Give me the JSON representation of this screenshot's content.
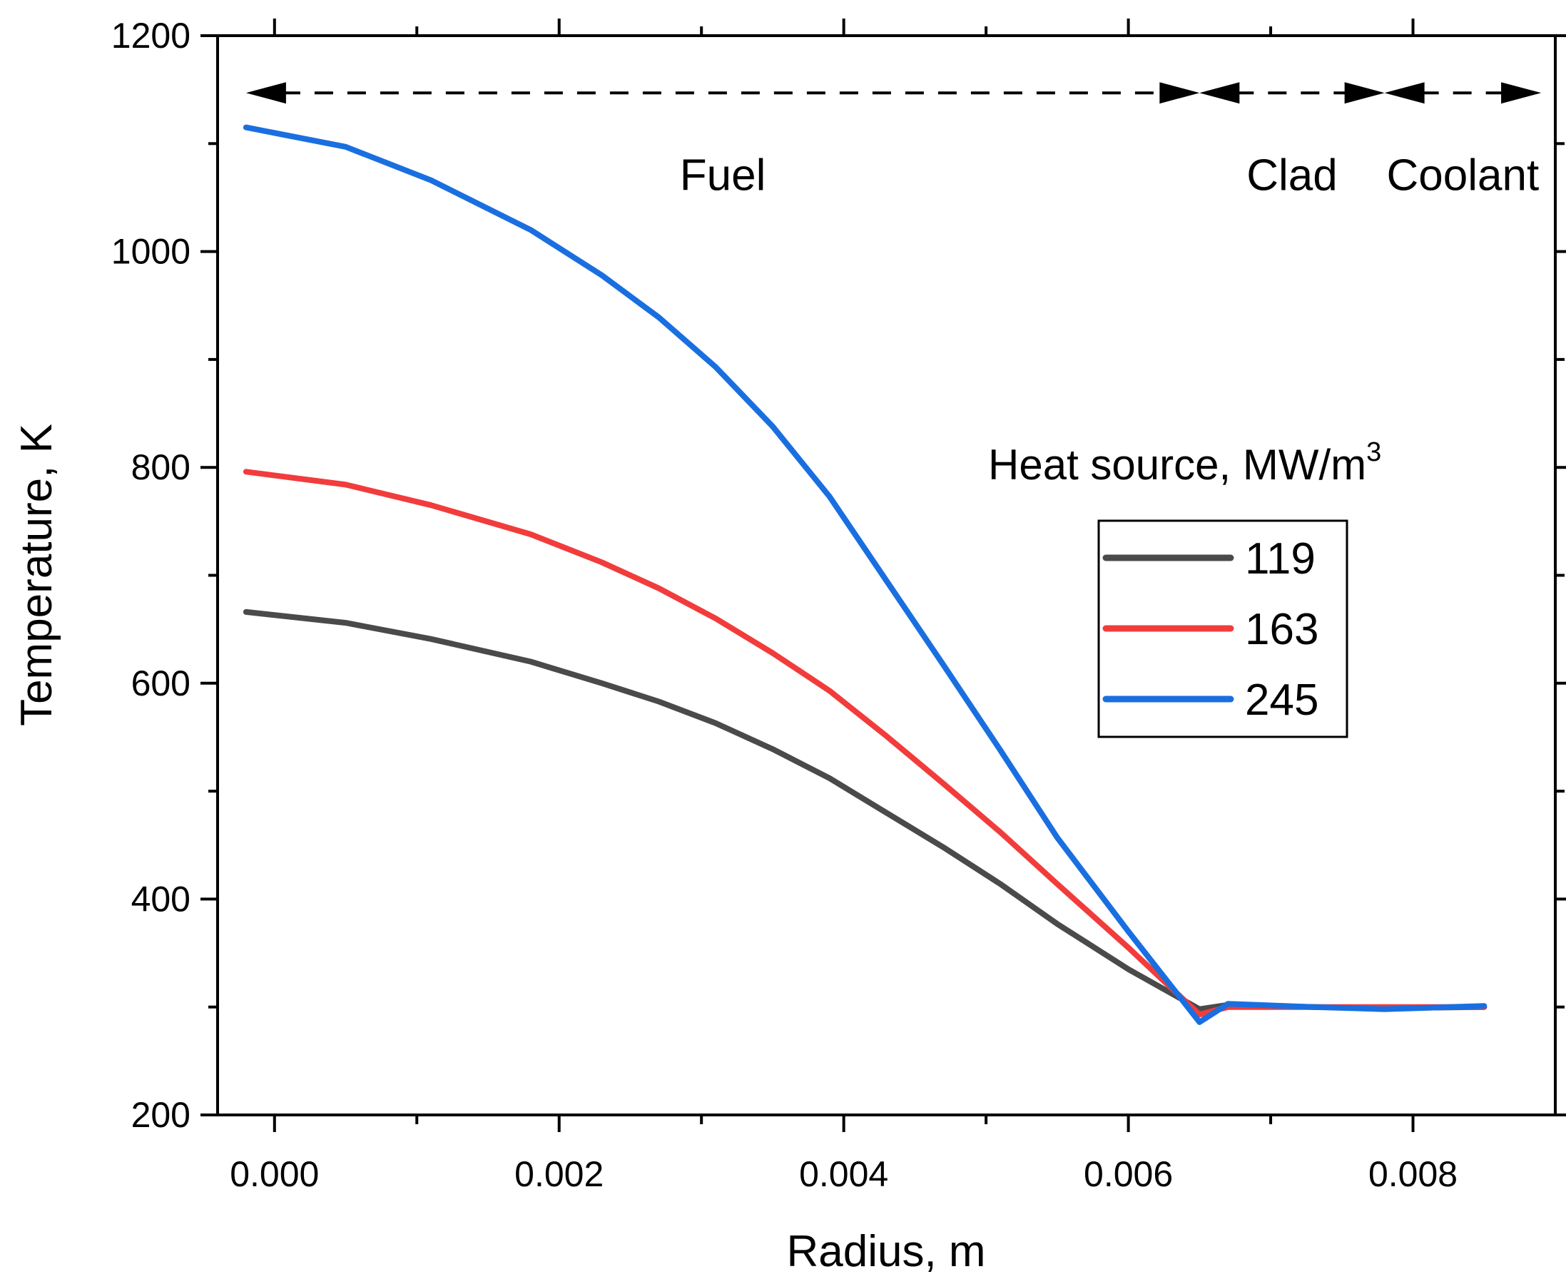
{
  "chart_data": {
    "type": "line",
    "xlabel": "Radius, m",
    "ylabel": "Temperature, K",
    "xlim": [
      -0.0004,
      0.009
    ],
    "ylim": [
      200,
      1200
    ],
    "xticks": [
      "0.000",
      "0.002",
      "0.004",
      "0.006",
      "0.008"
    ],
    "yticks": [
      "200",
      "400",
      "600",
      "800",
      "1000",
      "1200"
    ],
    "grid": false,
    "legend": {
      "title": "Heat source, MW/m",
      "title_superscript": "3",
      "placement": "right-middle"
    },
    "regions": [
      {
        "label": "Fuel",
        "from": -0.0002,
        "to": 0.0065
      },
      {
        "label": "Clad",
        "from": 0.0065,
        "to": 0.0078
      },
      {
        "label": "Coolant",
        "from": 0.0078,
        "to": 0.0089
      }
    ],
    "series": [
      {
        "name": "119",
        "color": "#4a4a4a",
        "x": [
          -0.0002,
          0.0005,
          0.0011,
          0.0018,
          0.0023,
          0.0027,
          0.0031,
          0.0035,
          0.0039,
          0.0043,
          0.0047,
          0.0051,
          0.0055,
          0.006,
          0.0065,
          0.0067,
          0.0073,
          0.0078,
          0.0085
        ],
        "y": [
          666,
          656,
          641,
          620,
          600,
          583,
          563,
          539,
          512,
          480,
          448,
          414,
          377,
          335,
          298,
          302,
          300,
          299,
          300
        ]
      },
      {
        "name": "163",
        "color": "#f23c3c",
        "x": [
          -0.0002,
          0.0005,
          0.0011,
          0.0018,
          0.0023,
          0.0027,
          0.0031,
          0.0035,
          0.0039,
          0.0043,
          0.0047,
          0.0051,
          0.0055,
          0.006,
          0.0065,
          0.0067,
          0.0073,
          0.0078,
          0.0085
        ],
        "y": [
          796,
          784,
          765,
          738,
          712,
          688,
          660,
          628,
          593,
          551,
          507,
          462,
          414,
          355,
          293,
          300,
          300,
          300,
          300
        ]
      },
      {
        "name": "245",
        "color": "#1a6fe0",
        "x": [
          -0.0002,
          0.0005,
          0.0011,
          0.0018,
          0.0023,
          0.0027,
          0.0031,
          0.0035,
          0.0039,
          0.0043,
          0.0047,
          0.0051,
          0.0055,
          0.006,
          0.0065,
          0.0067,
          0.0073,
          0.0078,
          0.0085
        ],
        "y": [
          1115,
          1097,
          1066,
          1020,
          978,
          939,
          893,
          838,
          773,
          695,
          617,
          538,
          457,
          370,
          286,
          303,
          300,
          298,
          301
        ]
      }
    ]
  }
}
